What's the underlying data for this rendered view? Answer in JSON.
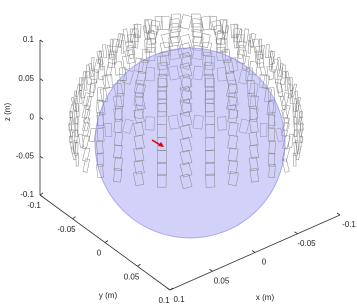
{
  "chart_data": {
    "type": "surface3d",
    "xlabel": "x (m)",
    "ylabel": "y (m)",
    "zlabel": "z (m)",
    "xlim": [
      -0.1,
      0.1
    ],
    "ylim": [
      -0.1,
      0.1
    ],
    "zlim": [
      -0.1,
      0.1
    ],
    "xticks": [
      -0.1,
      -0.05,
      0,
      0.05,
      0.1
    ],
    "yticks": [
      -0.1,
      -0.05,
      0,
      0.05,
      0.1
    ],
    "zticks": [
      -0.1,
      -0.05,
      0,
      0.05,
      0.1
    ],
    "color": "#9a9af5"
  }
}
